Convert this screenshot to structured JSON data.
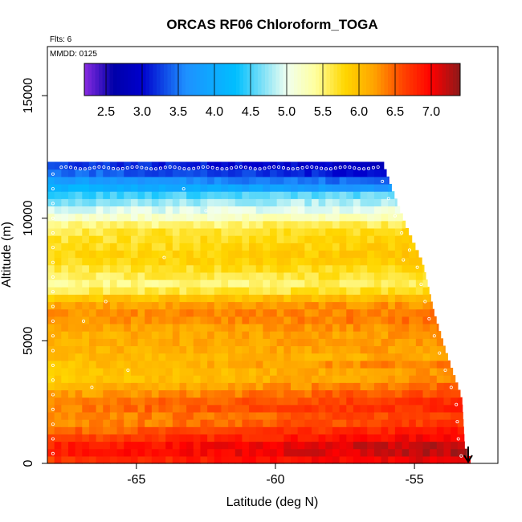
{
  "chart_data": {
    "type": "heatmap",
    "title": "ORCAS RF06 Chloroform_TOGA",
    "xlabel": "Latitude (deg N)",
    "ylabel": "Altitude (m)",
    "annotations": {
      "flights": "Flts: 6",
      "date": "MMDD: 0125"
    },
    "xlim": [
      -68.2,
      -52.0
    ],
    "ylim": [
      0,
      17000
    ],
    "x_ticks": [
      -65,
      -60,
      -55
    ],
    "x_tick_labels": [
      "-65",
      "-60",
      "-55"
    ],
    "y_ticks": [
      0,
      5000,
      10000,
      15000
    ],
    "y_tick_labels": [
      "0",
      "5000",
      "10000",
      "15000"
    ],
    "colorbar": {
      "min": 2.2,
      "max": 7.4,
      "ticks": [
        2.5,
        3.0,
        3.5,
        4.0,
        4.5,
        5.0,
        5.5,
        6.0,
        6.5,
        7.0
      ],
      "tick_labels": [
        "2.5",
        "3.0",
        "3.5",
        "4.0",
        "4.5",
        "5.0",
        "5.5",
        "6.0",
        "6.5",
        "7.0"
      ],
      "colors": [
        "#8a2be2",
        "#0000a8",
        "#0000cd",
        "#1e90ff",
        "#00bfff",
        "#f0fff0",
        "#ffff9e",
        "#ffd700",
        "#ffa500",
        "#ff4500",
        "#ff0000",
        "#8b1a1a"
      ],
      "color_stops": [
        2.2,
        2.6,
        3.0,
        3.6,
        4.3,
        5.0,
        5.4,
        5.8,
        6.2,
        6.6,
        7.0,
        7.4
      ]
    },
    "profile_layers": [
      {
        "alt": 0,
        "value": 6.6
      },
      {
        "alt": 600,
        "value": 6.9
      },
      {
        "alt": 1200,
        "value": 6.5
      },
      {
        "alt": 1800,
        "value": 6.2
      },
      {
        "alt": 2400,
        "value": 6.4
      },
      {
        "alt": 3000,
        "value": 6.1
      },
      {
        "alt": 3600,
        "value": 5.8
      },
      {
        "alt": 4200,
        "value": 6.0
      },
      {
        "alt": 4800,
        "value": 6.1
      },
      {
        "alt": 5400,
        "value": 6.1
      },
      {
        "alt": 6000,
        "value": 6.3
      },
      {
        "alt": 6600,
        "value": 6.1
      },
      {
        "alt": 7200,
        "value": 5.4
      },
      {
        "alt": 7800,
        "value": 5.6
      },
      {
        "alt": 8400,
        "value": 5.8
      },
      {
        "alt": 9000,
        "value": 5.7
      },
      {
        "alt": 9600,
        "value": 5.6
      },
      {
        "alt": 10200,
        "value": 5.0
      },
      {
        "alt": 10800,
        "value": 4.6
      },
      {
        "alt": 11400,
        "value": 4.0
      },
      {
        "alt": 12000,
        "value": 3.3
      }
    ],
    "data_extent": [
      {
        "alt": 0,
        "lat_max": -53.0
      },
      {
        "alt": 500,
        "lat_max": -53.2
      },
      {
        "alt": 2500,
        "lat_max": -53.3
      },
      {
        "alt": 4500,
        "lat_max": -53.9
      },
      {
        "alt": 6000,
        "lat_max": -54.3
      },
      {
        "alt": 8000,
        "lat_max": -54.7
      },
      {
        "alt": 9500,
        "lat_max": -55.3
      },
      {
        "alt": 11000,
        "lat_max": -55.8
      },
      {
        "alt": 12300,
        "lat_max": -56.2
      }
    ],
    "data_lat_min": -68.2
  }
}
